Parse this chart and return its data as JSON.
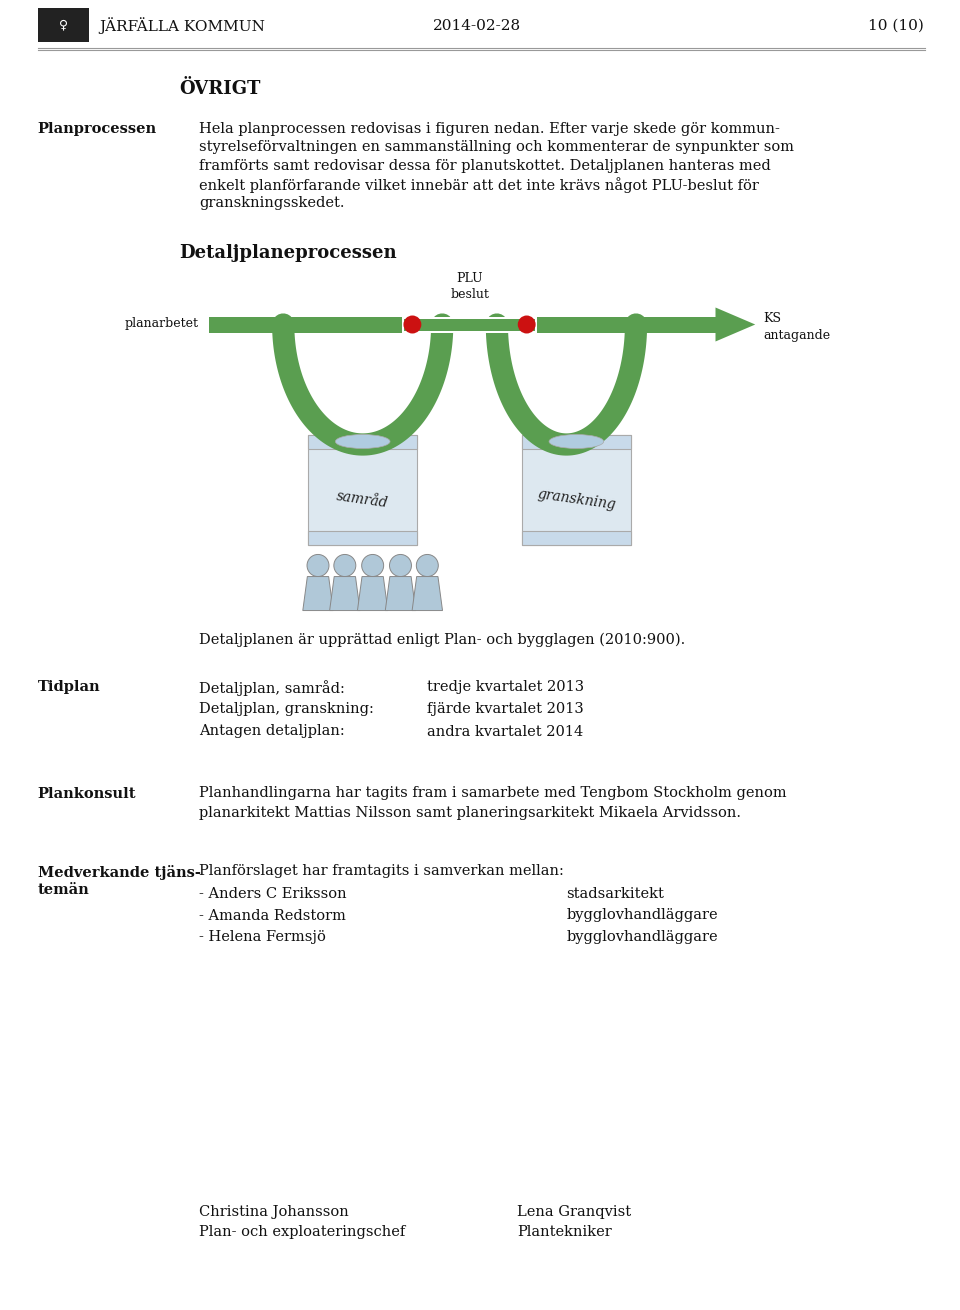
{
  "bg_color": "#ffffff",
  "header_date": "2014-02-28",
  "header_page": "10 (10)",
  "header_org": "JÄRFÄLLA KOMMUN",
  "section_title": "ÖVRIGT",
  "label_planprocessen": "Planprocessen",
  "text_planprocessen_lines": [
    "Hela planprocessen redovisas i figuren nedan. Efter varje skede gör kommun-",
    "styrelseförvaltningen en sammanställning och kommenterar de synpunkter som",
    "framförts samt redovisar dessa för planutskottet. Detaljplanen hanteras med",
    "enkelt planförfarande vilket innebär att det inte krävs något PLU-beslut för",
    "granskningsskedet."
  ],
  "diagram_title": "Detaljplaneprocessen",
  "text_detaljplanen": "Detaljplanen är upprättad enligt Plan- och bygglagen (2010:900).",
  "label_tidplan": "Tidplan",
  "tidplan_lines": [
    [
      "Detaljplan, samråd:",
      "tredje kvartalet 2013"
    ],
    [
      "Detaljplan, granskning:",
      "fjärde kvartalet 2013"
    ],
    [
      "Antagen detaljplan:",
      "andra kvartalet 2014"
    ]
  ],
  "label_plankonsult": "Plankonsult",
  "text_plankonsult_lines": [
    "Planhandlingarna har tagits fram i samarbete med Tengbom Stockholm genom",
    "planarkitekt Mattias Nilsson samt planeringsarkitekt Mikaela Arvidsson."
  ],
  "label_medverkande_line1": "Medverkande tjäns-",
  "label_medverkande_line2": "temän",
  "text_medverkande_intro": "Planförslaget har framtagits i samverkan mellan:",
  "medverkande_persons": [
    [
      "- Anders C Eriksson",
      "stadsarkitekt"
    ],
    [
      "- Amanda Redstorm",
      "bygglovhandläggare"
    ],
    [
      "- Helena Fermsjö",
      "bygglovhandläggare"
    ]
  ],
  "signer_names": [
    "Christina Johansson",
    "Lena Granqvist"
  ],
  "signer_titles": [
    "Plan- och exploateringschef",
    "Plantekniker"
  ],
  "green_color": "#5a9e50",
  "green_dark": "#3d7a34",
  "red_dot_color": "#cc1111",
  "scroll_fill": "#dde8f0",
  "scroll_edge": "#aaaaaa",
  "people_color": "#b0c8d8",
  "text_color": "#111111",
  "font_size": 10.5,
  "font_size_small": 9.0,
  "font_size_header": 11,
  "font_size_section": 13
}
